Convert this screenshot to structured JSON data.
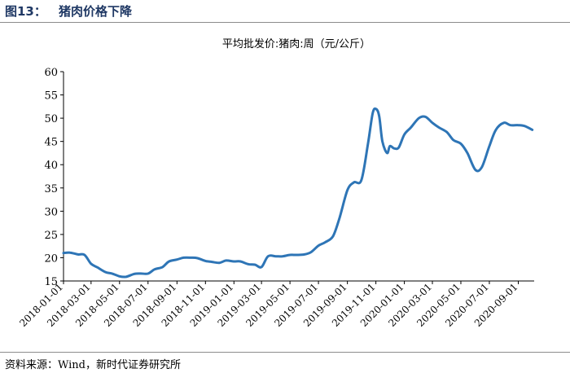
{
  "figure": {
    "label": "图13：",
    "title": "猪肉价格下降",
    "source": "资料来源：Wind，新时代证券研究所"
  },
  "chart_data": {
    "type": "line",
    "title": "平均批发价:猪肉:周（元/公斤）",
    "xlabel": "",
    "ylabel": "",
    "ylim": [
      15,
      60
    ],
    "yticks": [
      15,
      20,
      25,
      30,
      35,
      40,
      45,
      50,
      55,
      60
    ],
    "xlim": [
      "2018-01-01",
      "2020-10-05"
    ],
    "xticks": [
      "2018-01-01",
      "2018-03-01",
      "2018-05-01",
      "2018-07-01",
      "2018-09-01",
      "2018-11-01",
      "2019-01-01",
      "2019-03-01",
      "2019-05-01",
      "2019-07-01",
      "2019-09-01",
      "2019-11-01",
      "2020-01-01",
      "2020-03-01",
      "2020-05-01",
      "2020-07-01",
      "2020-09-01"
    ],
    "grid": false,
    "legend": "none",
    "line_color": "#2e75b6",
    "series": [
      {
        "x": [
          "2018-01-01",
          "2018-01-15",
          "2018-02-01",
          "2018-02-15",
          "2018-03-01",
          "2018-03-15",
          "2018-04-01",
          "2018-04-15",
          "2018-05-01",
          "2018-05-15",
          "2018-06-01",
          "2018-06-15",
          "2018-07-01",
          "2018-07-15",
          "2018-08-01",
          "2018-08-15",
          "2018-09-01",
          "2018-09-15",
          "2018-10-01",
          "2018-10-15",
          "2018-11-01",
          "2018-11-15",
          "2018-12-01",
          "2018-12-15",
          "2019-01-01",
          "2019-01-15",
          "2019-02-01",
          "2019-02-15",
          "2019-03-01",
          "2019-03-15",
          "2019-04-01",
          "2019-04-15",
          "2019-05-01",
          "2019-05-15",
          "2019-06-01",
          "2019-06-15",
          "2019-07-01",
          "2019-07-15",
          "2019-08-01",
          "2019-08-15",
          "2019-09-01",
          "2019-09-15",
          "2019-10-01",
          "2019-10-15",
          "2019-10-25",
          "2019-11-01",
          "2019-11-08",
          "2019-11-15",
          "2019-11-25",
          "2019-12-01",
          "2019-12-10",
          "2019-12-20",
          "2020-01-01",
          "2020-01-15",
          "2020-02-01",
          "2020-02-15",
          "2020-03-01",
          "2020-03-15",
          "2020-04-01",
          "2020-04-15",
          "2020-05-01",
          "2020-05-15",
          "2020-06-01",
          "2020-06-15",
          "2020-07-01",
          "2020-07-15",
          "2020-08-01",
          "2020-08-15",
          "2020-09-01",
          "2020-09-15",
          "2020-10-01"
        ],
        "y": [
          21.0,
          21.1,
          20.7,
          20.6,
          18.7,
          17.9,
          16.9,
          16.6,
          16.0,
          15.9,
          16.5,
          16.6,
          16.6,
          17.5,
          18.0,
          19.2,
          19.6,
          20.0,
          20.0,
          19.9,
          19.3,
          19.1,
          18.9,
          19.4,
          19.2,
          19.2,
          18.6,
          18.5,
          18.0,
          20.3,
          20.3,
          20.3,
          20.6,
          20.6,
          20.7,
          21.2,
          22.6,
          23.3,
          24.6,
          28.5,
          34.5,
          36.2,
          36.7,
          44.5,
          51.0,
          52.0,
          50.5,
          45.0,
          42.5,
          44.0,
          43.5,
          43.7,
          46.5,
          48.0,
          50.0,
          50.3,
          49.0,
          48.0,
          47.0,
          45.3,
          44.5,
          42.5,
          38.9,
          39.5,
          44.0,
          47.5,
          49.0,
          48.5,
          48.5,
          48.3,
          47.5
        ]
      }
    ]
  }
}
